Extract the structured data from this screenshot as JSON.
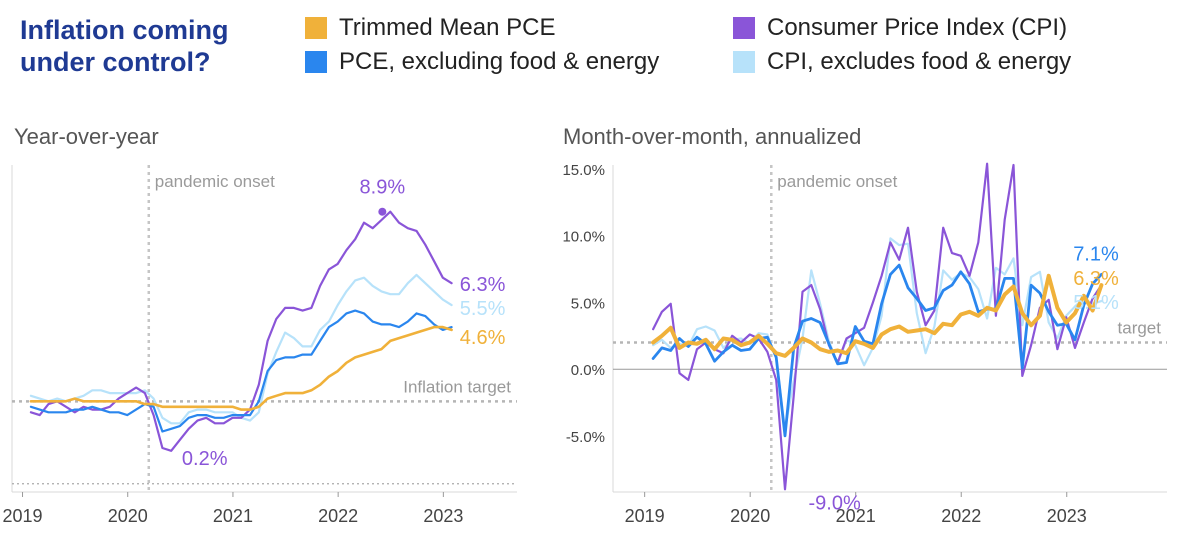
{
  "headline": "Inflation coming\nunder control?",
  "colors": {
    "trimmed": "#f0b13a",
    "cpi": "#8a55d8",
    "core_pce": "#2a86ee",
    "core_cpi": "#b7e2fa",
    "guide": "#bbbbbb",
    "axis_text": "#444444"
  },
  "legend": [
    {
      "label": "Trimmed Mean PCE",
      "series": "trimmed"
    },
    {
      "label": "Consumer Price Index (CPI)",
      "series": "cpi"
    },
    {
      "label": "PCE, excluding food & energy",
      "series": "core_pce"
    },
    {
      "label": "CPI, excludes food & energy",
      "series": "core_cpi"
    }
  ],
  "chart_data": [
    {
      "type": "line",
      "title": "Year-over-year",
      "xlabel": "",
      "ylabel": "",
      "x_ticks": [
        2019,
        2020,
        2021,
        2022,
        2023
      ],
      "xlim": [
        2018.9,
        2023.7
      ],
      "ylim": [
        -1.3,
        10.6
      ],
      "target_value": 2.0,
      "target_label": "Inflation target",
      "lower_reference_value": -1.0,
      "event_x": 2020.2,
      "event_label": "pandemic onset",
      "series": [
        {
          "key": "cpi",
          "name": "Consumer Price Index (CPI)",
          "x_start": 2019.08,
          "step": 0.0833,
          "values": [
            1.6,
            1.5,
            1.9,
            2.0,
            1.8,
            1.6,
            1.8,
            1.7,
            1.7,
            1.8,
            2.1,
            2.3,
            2.5,
            2.3,
            1.5,
            0.3,
            0.2,
            0.6,
            1.0,
            1.3,
            1.4,
            1.2,
            1.2,
            1.4,
            1.4,
            1.7,
            2.6,
            4.2,
            5.0,
            5.4,
            5.4,
            5.3,
            5.4,
            6.2,
            6.8,
            7.0,
            7.5,
            7.9,
            8.5,
            8.3,
            8.6,
            8.9,
            8.5,
            8.3,
            8.2,
            7.7,
            7.1,
            6.5,
            6.3
          ]
        },
        {
          "key": "core_cpi",
          "name": "CPI, excludes food & energy",
          "x_start": 2019.08,
          "step": 0.0833,
          "values": [
            2.2,
            2.1,
            2.0,
            2.1,
            2.0,
            2.1,
            2.2,
            2.4,
            2.4,
            2.3,
            2.3,
            2.3,
            2.3,
            2.4,
            2.1,
            1.4,
            1.2,
            1.2,
            1.6,
            1.7,
            1.7,
            1.6,
            1.6,
            1.6,
            1.4,
            1.3,
            1.6,
            3.0,
            3.8,
            4.5,
            4.3,
            4.0,
            4.0,
            4.6,
            4.9,
            5.5,
            6.0,
            6.4,
            6.5,
            6.2,
            6.0,
            5.9,
            5.9,
            6.3,
            6.6,
            6.3,
            6.0,
            5.7,
            5.5
          ]
        },
        {
          "key": "core_pce",
          "name": "PCE, excluding food & energy",
          "x_start": 2019.08,
          "step": 0.0833,
          "values": [
            1.8,
            1.7,
            1.6,
            1.6,
            1.6,
            1.7,
            1.7,
            1.8,
            1.7,
            1.6,
            1.6,
            1.5,
            1.7,
            1.9,
            1.8,
            0.9,
            1.0,
            1.1,
            1.4,
            1.5,
            1.5,
            1.4,
            1.4,
            1.5,
            1.5,
            1.5,
            2.0,
            3.1,
            3.5,
            3.6,
            3.6,
            3.7,
            3.7,
            4.2,
            4.7,
            4.9,
            5.2,
            5.3,
            5.2,
            4.9,
            4.8,
            4.8,
            4.7,
            4.9,
            5.2,
            5.1,
            4.8,
            4.6,
            4.7
          ]
        },
        {
          "key": "trimmed",
          "name": "Trimmed Mean PCE",
          "x_start": 2019.08,
          "step": 0.0833,
          "values": [
            2.0,
            2.0,
            2.0,
            2.0,
            2.0,
            2.1,
            2.0,
            2.0,
            2.0,
            2.0,
            2.0,
            2.0,
            2.0,
            1.9,
            1.9,
            1.8,
            1.8,
            1.8,
            1.8,
            1.8,
            1.8,
            1.8,
            1.8,
            1.8,
            1.7,
            1.7,
            1.8,
            2.1,
            2.2,
            2.3,
            2.3,
            2.3,
            2.4,
            2.6,
            2.9,
            3.1,
            3.4,
            3.6,
            3.7,
            3.8,
            3.9,
            4.2,
            4.3,
            4.4,
            4.5,
            4.6,
            4.7,
            4.7,
            4.6
          ]
        }
      ],
      "annotations": [
        {
          "text": "8.9%",
          "series": "cpi",
          "x": 2022.42,
          "y": 8.9
        },
        {
          "text": "0.2%",
          "series": "cpi",
          "x": 2020.42,
          "y": 0.2
        },
        {
          "text": "6.3%",
          "series": "cpi",
          "x": 2023.08,
          "y": 6.3
        },
        {
          "text": "5.5%",
          "series": "core_cpi",
          "x": 2023.08,
          "y": 5.5
        },
        {
          "text": "4.6%",
          "series": "trimmed",
          "x": 2023.08,
          "y": 4.6
        }
      ]
    },
    {
      "type": "line",
      "title": "Month-over-month, annualized",
      "xlabel": "",
      "ylabel": "",
      "x_ticks": [
        2019,
        2020,
        2021,
        2022,
        2023
      ],
      "y_ticks": [
        -5,
        0,
        5,
        10,
        15
      ],
      "y_tick_labels": [
        "-5.0%",
        "0.0%",
        "5.0%",
        "10.0%",
        "15.0%"
      ],
      "xlim": [
        2018.7,
        2023.95
      ],
      "ylim": [
        -9.2,
        15.3
      ],
      "target_value": 2.0,
      "target_label": "target",
      "zero_line_value": 0,
      "event_x": 2020.2,
      "event_label": "pandemic onset",
      "series": [
        {
          "key": "cpi",
          "name": "Consumer Price Index (CPI)",
          "x_start": 2019.08,
          "step": 0.0833,
          "values": [
            3.0,
            4.3,
            4.9,
            -0.3,
            -0.8,
            1.5,
            2.0,
            1.5,
            1.2,
            2.5,
            2.0,
            2.6,
            2.3,
            1.3,
            -0.8,
            -9.0,
            -2.0,
            5.8,
            6.3,
            4.5,
            1.8,
            0.5,
            2.3,
            2.7,
            3.1,
            5.0,
            7.0,
            9.5,
            8.2,
            10.6,
            5.8,
            3.3,
            4.4,
            10.6,
            8.7,
            8.5,
            7.0,
            9.5,
            15.4,
            4.0,
            11.2,
            15.3,
            -0.5,
            1.8,
            4.6,
            5.2,
            1.5,
            3.9,
            1.6,
            3.5,
            5.3,
            6.3
          ]
        },
        {
          "key": "core_cpi",
          "name": "CPI, excludes food & energy",
          "x_start": 2019.08,
          "step": 0.0833,
          "values": [
            1.8,
            2.2,
            1.6,
            1.9,
            1.7,
            3.0,
            3.2,
            2.9,
            1.6,
            2.2,
            2.3,
            1.9,
            2.7,
            2.6,
            0.8,
            -4.5,
            -0.9,
            2.3,
            7.4,
            4.9,
            2.1,
            0.4,
            2.2,
            1.8,
            0.3,
            1.6,
            4.0,
            9.8,
            9.3,
            9.4,
            4.2,
            1.2,
            3.2,
            7.4,
            6.7,
            7.2,
            6.9,
            6.0,
            3.8,
            7.6,
            7.1,
            8.3,
            3.3,
            6.9,
            7.3,
            3.5,
            2.3,
            4.0,
            4.7,
            5.3,
            4.9,
            5.1
          ]
        },
        {
          "key": "core_pce",
          "name": "PCE, excluding food & energy",
          "x_start": 2019.08,
          "step": 0.0833,
          "values": [
            0.8,
            1.6,
            1.4,
            2.3,
            1.7,
            2.4,
            1.9,
            0.6,
            1.3,
            1.8,
            1.4,
            1.5,
            2.3,
            2.4,
            0.9,
            -5.0,
            1.6,
            3.6,
            3.8,
            3.5,
            1.9,
            0.4,
            0.5,
            3.2,
            2.1,
            1.9,
            4.9,
            7.1,
            7.8,
            6.1,
            5.3,
            4.4,
            4.6,
            5.9,
            6.3,
            7.3,
            6.4,
            4.3,
            4.5,
            4.5,
            6.8,
            6.8,
            0.1,
            6.3,
            5.7,
            4.3,
            3.3,
            3.4,
            2.2,
            4.8,
            6.4,
            7.1
          ]
        },
        {
          "key": "trimmed",
          "name": "Trimmed Mean PCE",
          "x_start": 2019.08,
          "step": 0.0833,
          "values": [
            2.0,
            2.5,
            3.1,
            1.6,
            2.0,
            1.9,
            2.2,
            1.5,
            2.3,
            2.2,
            1.8,
            2.0,
            2.5,
            1.9,
            1.2,
            1.0,
            1.6,
            2.3,
            2.0,
            1.5,
            1.3,
            1.4,
            1.2,
            2.1,
            1.9,
            1.6,
            2.6,
            3.0,
            3.2,
            2.8,
            2.9,
            3.0,
            2.7,
            3.4,
            3.3,
            4.1,
            4.3,
            4.0,
            4.6,
            4.4,
            5.6,
            6.2,
            4.2,
            3.3,
            4.0,
            7.0,
            4.6,
            3.5,
            4.2,
            5.5,
            4.4,
            6.3
          ]
        }
      ],
      "annotations": [
        {
          "text": "7.1%",
          "series": "core_pce",
          "x": 2023.08,
          "y": 7.1
        },
        {
          "text": "6.3%",
          "series": "trimmed",
          "x": 2023.08,
          "y": 6.3
        },
        {
          "text": "5.1%",
          "series": "core_cpi",
          "x": 2023.08,
          "y": 5.1
        },
        {
          "text": "-9.0%",
          "series": "cpi",
          "x": 2020.42,
          "y": -9.0
        }
      ]
    }
  ]
}
